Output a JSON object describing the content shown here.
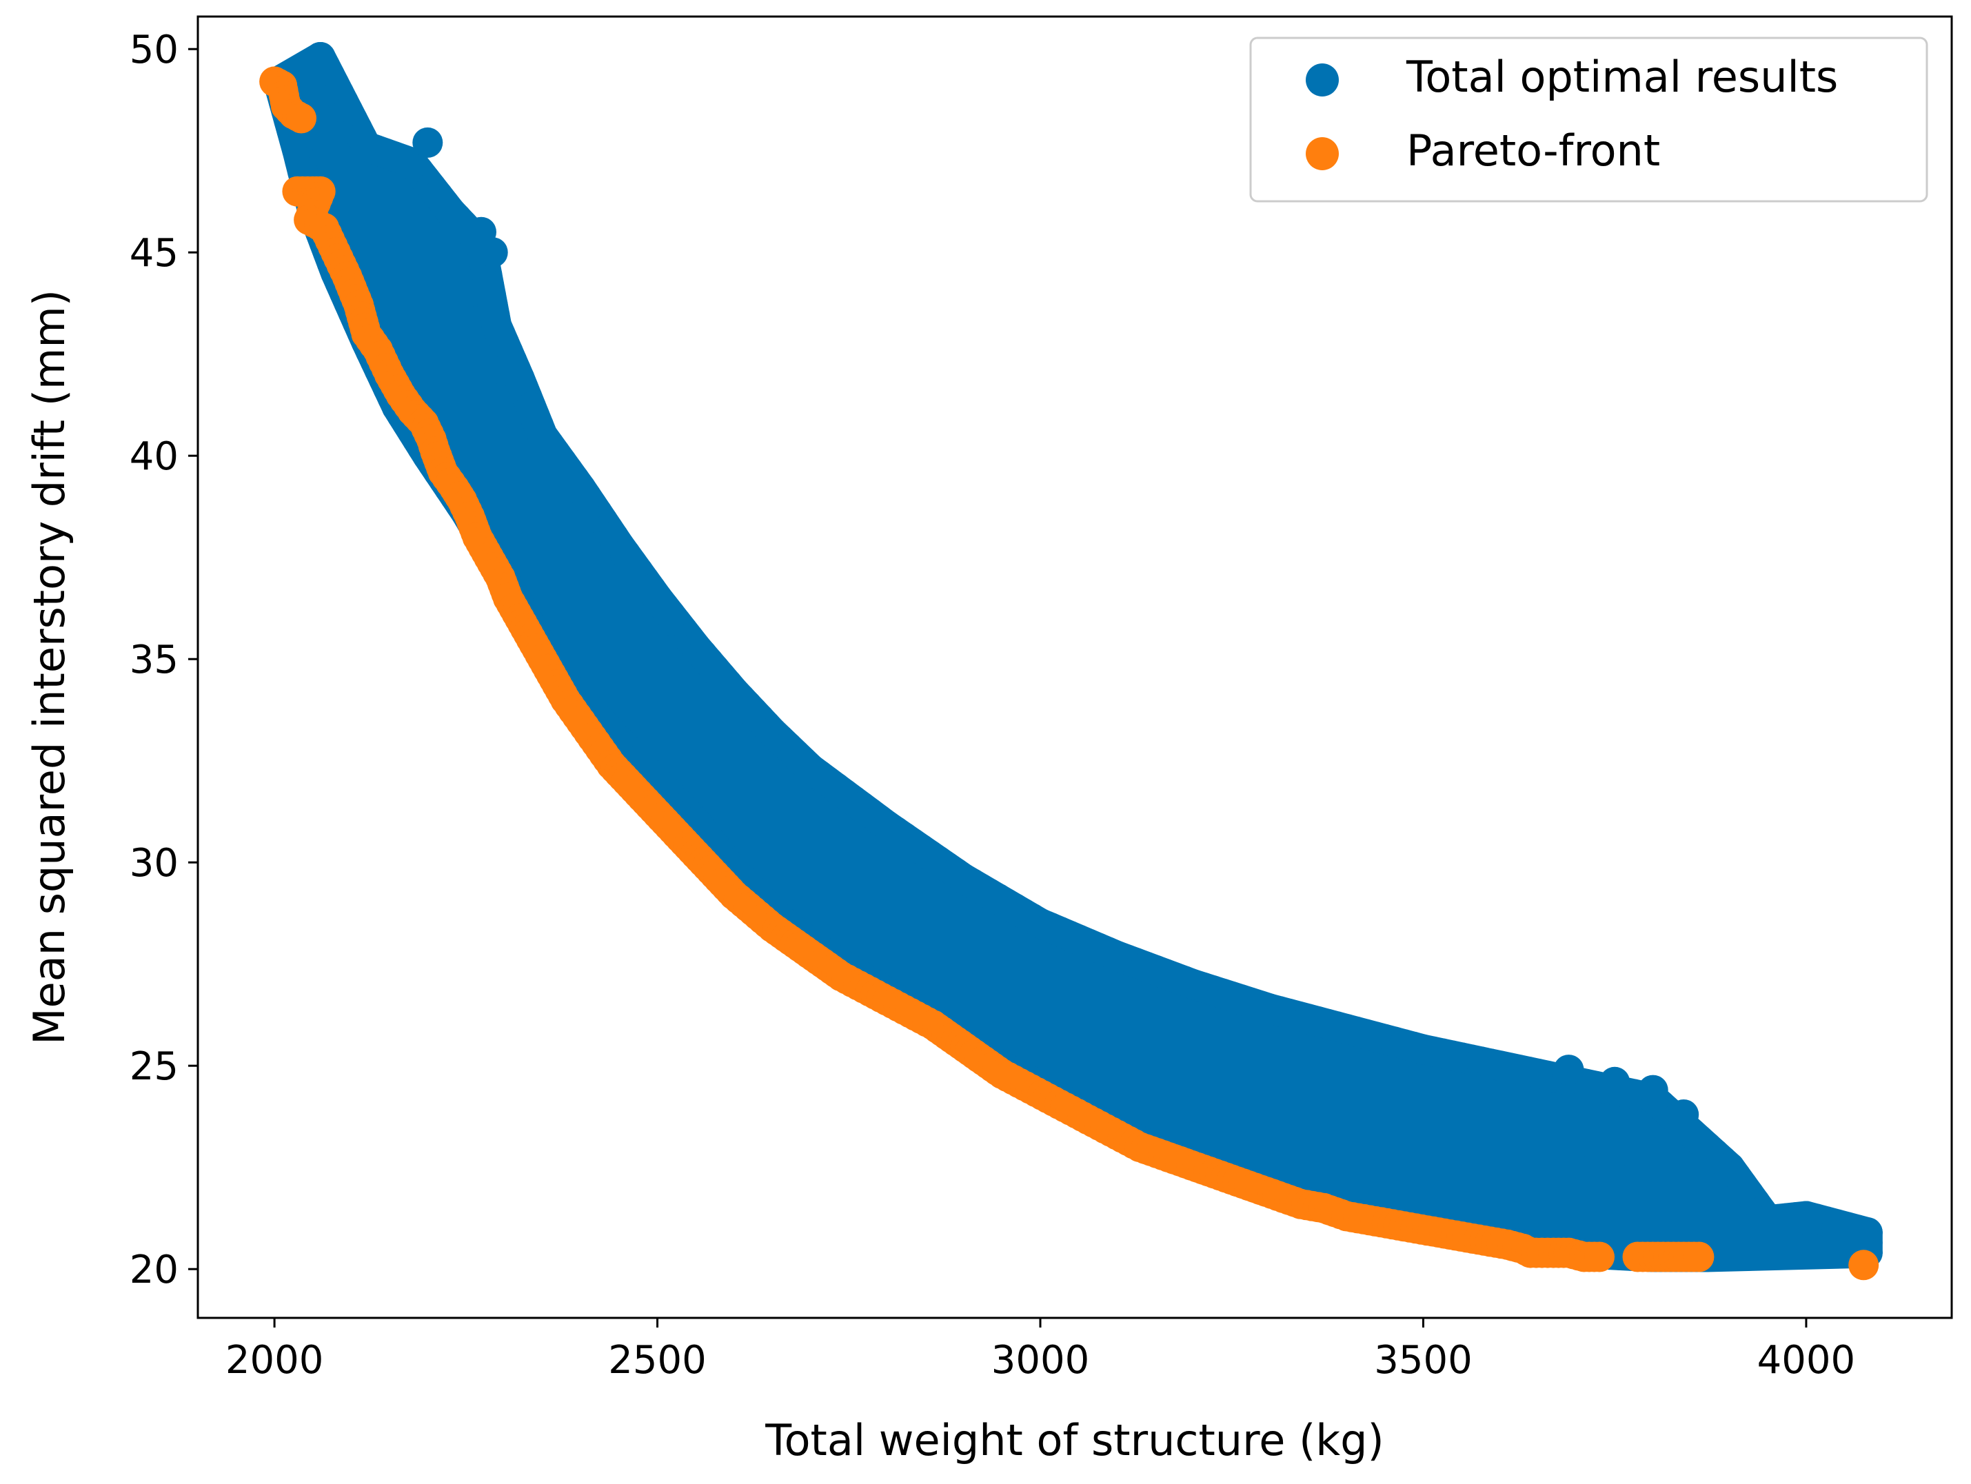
{
  "colors": {
    "series_total": "#0072b2",
    "series_pareto": "#ff7f0e",
    "axes": "#000000",
    "legend_border": "#cccccc",
    "background": "#ffffff"
  },
  "chart_data": {
    "type": "scatter",
    "title": "",
    "xlabel": "Total weight of structure (kg)",
    "ylabel": "Mean squared interstory drift (mm)",
    "xlim": [
      1900,
      4190
    ],
    "ylim": [
      18.8,
      50.8
    ],
    "xticks": [
      2000,
      2500,
      3000,
      3500,
      4000
    ],
    "yticks": [
      20,
      25,
      30,
      35,
      40,
      45,
      50
    ],
    "xtick_labels": [
      "2000",
      "2500",
      "3000",
      "3500",
      "4000"
    ],
    "ytick_labels": [
      "20",
      "25",
      "30",
      "35",
      "40",
      "45",
      "50"
    ],
    "grid": false,
    "legend_location": "upper right",
    "series": [
      {
        "name": "Total optimal results",
        "color": "#0072b2",
        "description": "dense cloud of optimal solutions",
        "lower_boundary": [
          [
            2005,
            49.2
          ],
          [
            2030,
            47.5
          ],
          [
            2050,
            46.0
          ],
          [
            2080,
            44.5
          ],
          [
            2120,
            42.8
          ],
          [
            2160,
            41.2
          ],
          [
            2200,
            40.0
          ],
          [
            2250,
            38.6
          ],
          [
            2300,
            37.0
          ],
          [
            2350,
            35.3
          ],
          [
            2400,
            34.0
          ],
          [
            2450,
            33.0
          ],
          [
            2500,
            32.0
          ],
          [
            2550,
            31.0
          ],
          [
            2600,
            29.8
          ],
          [
            2650,
            28.8
          ],
          [
            2700,
            28.0
          ],
          [
            2800,
            26.8
          ],
          [
            2900,
            25.5
          ],
          [
            3000,
            24.5
          ],
          [
            3100,
            23.4
          ],
          [
            3200,
            22.6
          ],
          [
            3300,
            21.9
          ],
          [
            3400,
            21.4
          ],
          [
            3500,
            21.0
          ],
          [
            3600,
            20.7
          ],
          [
            3700,
            20.4
          ],
          [
            3800,
            20.3
          ],
          [
            3870,
            20.3
          ]
        ],
        "upper_boundary": [
          [
            2060,
            49.8
          ],
          [
            2090,
            48.7
          ],
          [
            2120,
            47.6
          ],
          [
            2180,
            47.2
          ],
          [
            2230,
            46.0
          ],
          [
            2270,
            45.2
          ],
          [
            2290,
            43.2
          ],
          [
            2320,
            41.9
          ],
          [
            2350,
            40.5
          ],
          [
            2400,
            39.2
          ],
          [
            2450,
            37.8
          ],
          [
            2500,
            36.5
          ],
          [
            2550,
            35.3
          ],
          [
            2600,
            34.2
          ],
          [
            2650,
            33.2
          ],
          [
            2700,
            32.3
          ],
          [
            2800,
            30.9
          ],
          [
            2900,
            29.6
          ],
          [
            3000,
            28.5
          ],
          [
            3100,
            27.7
          ],
          [
            3200,
            27.0
          ],
          [
            3300,
            26.4
          ],
          [
            3400,
            25.9
          ],
          [
            3500,
            25.4
          ],
          [
            3600,
            25.0
          ],
          [
            3700,
            24.6
          ],
          [
            3800,
            24.2
          ],
          [
            3900,
            22.5
          ],
          [
            3950,
            21.2
          ],
          [
            4000,
            21.3
          ],
          [
            4080,
            20.9
          ],
          [
            4080,
            20.4
          ]
        ],
        "points": [
          [
            2060,
            49.8
          ],
          [
            2200,
            47.7
          ],
          [
            2270,
            45.5
          ],
          [
            2285,
            45.0
          ],
          [
            2250,
            44.0
          ],
          [
            2300,
            42.1
          ],
          [
            2380,
            39.5
          ],
          [
            3690,
            24.9
          ],
          [
            3750,
            24.6
          ],
          [
            3800,
            24.4
          ],
          [
            3840,
            23.8
          ],
          [
            3720,
            23.1
          ],
          [
            3770,
            22.9
          ],
          [
            3860,
            22.4
          ],
          [
            3890,
            21.6
          ],
          [
            3950,
            20.6
          ],
          [
            3990,
            21.2
          ],
          [
            4040,
            21.0
          ],
          [
            4080,
            20.9
          ],
          [
            4080,
            20.4
          ],
          [
            3870,
            20.3
          ],
          [
            3970,
            20.7
          ]
        ]
      },
      {
        "name": "Pareto-front",
        "color": "#ff7f0e",
        "points": [
          [
            2000,
            49.2
          ],
          [
            2010,
            49.1
          ],
          [
            2015,
            48.6
          ],
          [
            2025,
            48.4
          ],
          [
            2035,
            48.3
          ],
          [
            2030,
            46.5
          ],
          [
            2050,
            46.5
          ],
          [
            2060,
            46.5
          ],
          [
            2045,
            45.8
          ],
          [
            2065,
            45.6
          ],
          [
            2080,
            45.0
          ],
          [
            2095,
            44.4
          ],
          [
            2110,
            43.7
          ],
          [
            2120,
            43.0
          ],
          [
            2135,
            42.6
          ],
          [
            2150,
            42.0
          ],
          [
            2165,
            41.5
          ],
          [
            2180,
            41.1
          ],
          [
            2195,
            40.8
          ],
          [
            2205,
            40.4
          ],
          [
            2210,
            40.1
          ],
          [
            2220,
            39.6
          ],
          [
            2235,
            39.2
          ],
          [
            2245,
            38.9
          ],
          [
            2255,
            38.5
          ],
          [
            2265,
            38.0
          ],
          [
            2280,
            37.5
          ],
          [
            2295,
            37.0
          ],
          [
            2305,
            36.5
          ],
          [
            2320,
            36.0
          ],
          [
            2335,
            35.5
          ],
          [
            2350,
            35.0
          ],
          [
            2365,
            34.5
          ],
          [
            2380,
            34.0
          ],
          [
            2395,
            33.6
          ],
          [
            2410,
            33.2
          ],
          [
            2425,
            32.8
          ],
          [
            2440,
            32.4
          ],
          [
            2460,
            32.0
          ],
          [
            2480,
            31.6
          ],
          [
            2500,
            31.2
          ],
          [
            2520,
            30.8
          ],
          [
            2540,
            30.4
          ],
          [
            2560,
            30.0
          ],
          [
            2580,
            29.6
          ],
          [
            2600,
            29.2
          ],
          [
            2625,
            28.8
          ],
          [
            2650,
            28.4
          ],
          [
            2680,
            28.0
          ],
          [
            2710,
            27.6
          ],
          [
            2740,
            27.2
          ],
          [
            2770,
            26.9
          ],
          [
            2800,
            26.6
          ],
          [
            2830,
            26.3
          ],
          [
            2860,
            26.0
          ],
          [
            2890,
            25.6
          ],
          [
            2920,
            25.2
          ],
          [
            2950,
            24.8
          ],
          [
            2980,
            24.5
          ],
          [
            3010,
            24.2
          ],
          [
            3040,
            23.9
          ],
          [
            3070,
            23.6
          ],
          [
            3100,
            23.3
          ],
          [
            3130,
            23.0
          ],
          [
            3160,
            22.8
          ],
          [
            3190,
            22.6
          ],
          [
            3220,
            22.4
          ],
          [
            3250,
            22.2
          ],
          [
            3280,
            22.0
          ],
          [
            3310,
            21.8
          ],
          [
            3340,
            21.6
          ],
          [
            3370,
            21.5
          ],
          [
            3400,
            21.3
          ],
          [
            3430,
            21.2
          ],
          [
            3460,
            21.1
          ],
          [
            3490,
            21.0
          ],
          [
            3520,
            20.9
          ],
          [
            3550,
            20.8
          ],
          [
            3580,
            20.7
          ],
          [
            3610,
            20.6
          ],
          [
            3630,
            20.5
          ],
          [
            3640,
            20.4
          ],
          [
            3670,
            20.4
          ],
          [
            3690,
            20.4
          ],
          [
            3710,
            20.3
          ],
          [
            3730,
            20.3
          ],
          [
            3780,
            20.3
          ],
          [
            3800,
            20.3
          ],
          [
            3820,
            20.3
          ],
          [
            3840,
            20.3
          ],
          [
            3860,
            20.3
          ],
          [
            4075,
            20.1
          ]
        ]
      }
    ]
  }
}
